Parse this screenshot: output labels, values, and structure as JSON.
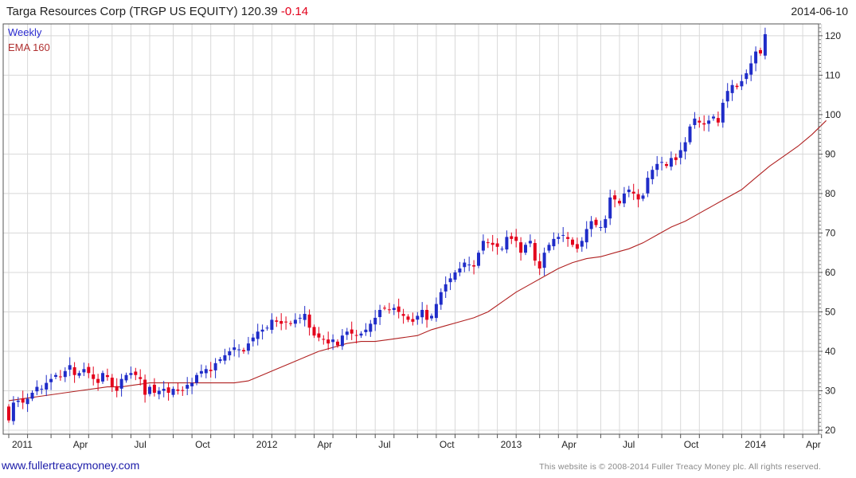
{
  "header": {
    "title_main": "Targa Resources Corp (TRGP US EQUITY) 120.39",
    "change": "-0.14",
    "date": "2014-06-10"
  },
  "footer": {
    "link": "www.fullertreacymoney.com",
    "copyright": "This website is © 2008-2014 Fuller Treacy Money plc. All rights reserved."
  },
  "colors": {
    "up_candle": "#1f2cc8",
    "down_candle": "#e3001b",
    "ema_line": "#b02020",
    "grid": "#d8d8d8"
  },
  "chart_data": {
    "type": "candlestick",
    "title": "Targa Resources Corp (TRGP US EQUITY)",
    "frequency": "Weekly",
    "last_price": 120.39,
    "change": -0.14,
    "legend": [
      "Weekly",
      "EMA 160"
    ],
    "ylim": [
      19,
      123
    ],
    "y_ticks": [
      20,
      30,
      40,
      50,
      60,
      70,
      80,
      90,
      100,
      110,
      120
    ],
    "x_tick_labels": [
      "2011",
      "Apr",
      "Jul",
      "Oct",
      "2012",
      "Apr",
      "Jul",
      "Oct",
      "2013",
      "Apr",
      "Jul",
      "Oct",
      "2014",
      "Apr"
    ],
    "x_tick_weeks": [
      0,
      13,
      26,
      39,
      52,
      65,
      78,
      91,
      104,
      117,
      130,
      143,
      156,
      169
    ],
    "weekly_close": [
      22.5,
      27.0,
      27.5,
      27.0,
      28.0,
      29.5,
      31.0,
      30.5,
      32.0,
      33.0,
      34.0,
      33.5,
      35.0,
      36.5,
      34.0,
      34.5,
      35.5,
      34.5,
      33.0,
      32.0,
      34.5,
      33.5,
      31.0,
      30.0,
      33.0,
      34.0,
      34.5,
      34.0,
      33.0,
      29.0,
      31.0,
      29.5,
      30.0,
      30.5,
      29.5,
      30.5,
      30.0,
      30.0,
      31.5,
      32.0,
      34.0,
      35.0,
      35.5,
      35.0,
      37.0,
      38.0,
      39.0,
      40.0,
      41.0,
      40.5,
      40.0,
      42.0,
      43.5,
      45.0,
      45.5,
      46.0,
      48.0,
      47.5,
      47.0,
      47.5,
      47.0,
      48.0,
      48.5,
      49.5,
      46.0,
      44.0,
      43.5,
      43.0,
      42.0,
      43.0,
      41.5,
      44.0,
      45.0,
      44.5,
      44.0,
      44.5,
      45.5,
      47.0,
      48.5,
      50.5,
      51.0,
      50.5,
      51.0,
      50.0,
      49.0,
      48.0,
      47.5,
      49.0,
      50.5,
      48.0,
      49.0,
      52.0,
      55.0,
      57.0,
      58.5,
      60.0,
      61.0,
      62.5,
      62.0,
      61.5,
      65.0,
      68.0,
      67.5,
      67.0,
      66.5,
      66.0,
      69.0,
      68.5,
      68.0,
      65.0,
      67.0,
      68.0,
      63.0,
      61.0,
      65.0,
      67.0,
      68.5,
      69.0,
      69.5,
      68.5,
      67.0,
      66.0,
      68.0,
      71.0,
      73.0,
      72.0,
      71.5,
      73.5,
      79.0,
      78.5,
      77.5,
      80.0,
      81.0,
      80.0,
      78.5,
      79.5,
      84.0,
      86.0,
      87.5,
      88.0,
      87.0,
      89.0,
      88.5,
      91.0,
      93.0,
      97.0,
      99.0,
      98.0,
      97.5,
      98.5,
      99.5,
      98.0,
      103.0,
      106.0,
      107.5,
      107.0,
      108.5,
      110.5,
      113.0,
      116.0,
      115.5,
      120.39
    ],
    "ema_160": [
      27.5,
      28.0,
      28.5,
      29.0,
      29.5,
      30.0,
      30.5,
      31.0,
      31.0,
      31.5,
      32.0,
      32.0,
      32.0,
      32.0,
      32.0,
      32.0,
      32.0,
      32.5,
      34.0,
      35.5,
      37.0,
      38.5,
      40.0,
      41.0,
      42.0,
      42.5,
      42.5,
      43.0,
      43.5,
      44.0,
      45.5,
      46.5,
      47.5,
      48.5,
      50.0,
      52.5,
      55.0,
      57.0,
      59.0,
      61.0,
      62.5,
      63.5,
      64.0,
      65.0,
      66.0,
      67.5,
      69.5,
      71.5,
      73.0,
      75.0,
      77.0,
      79.0,
      81.0,
      84.0,
      87.0,
      89.5,
      92.0,
      95.0,
      98.5
    ],
    "ema_160_start_week": 0,
    "ema_160_step_weeks": 3
  }
}
